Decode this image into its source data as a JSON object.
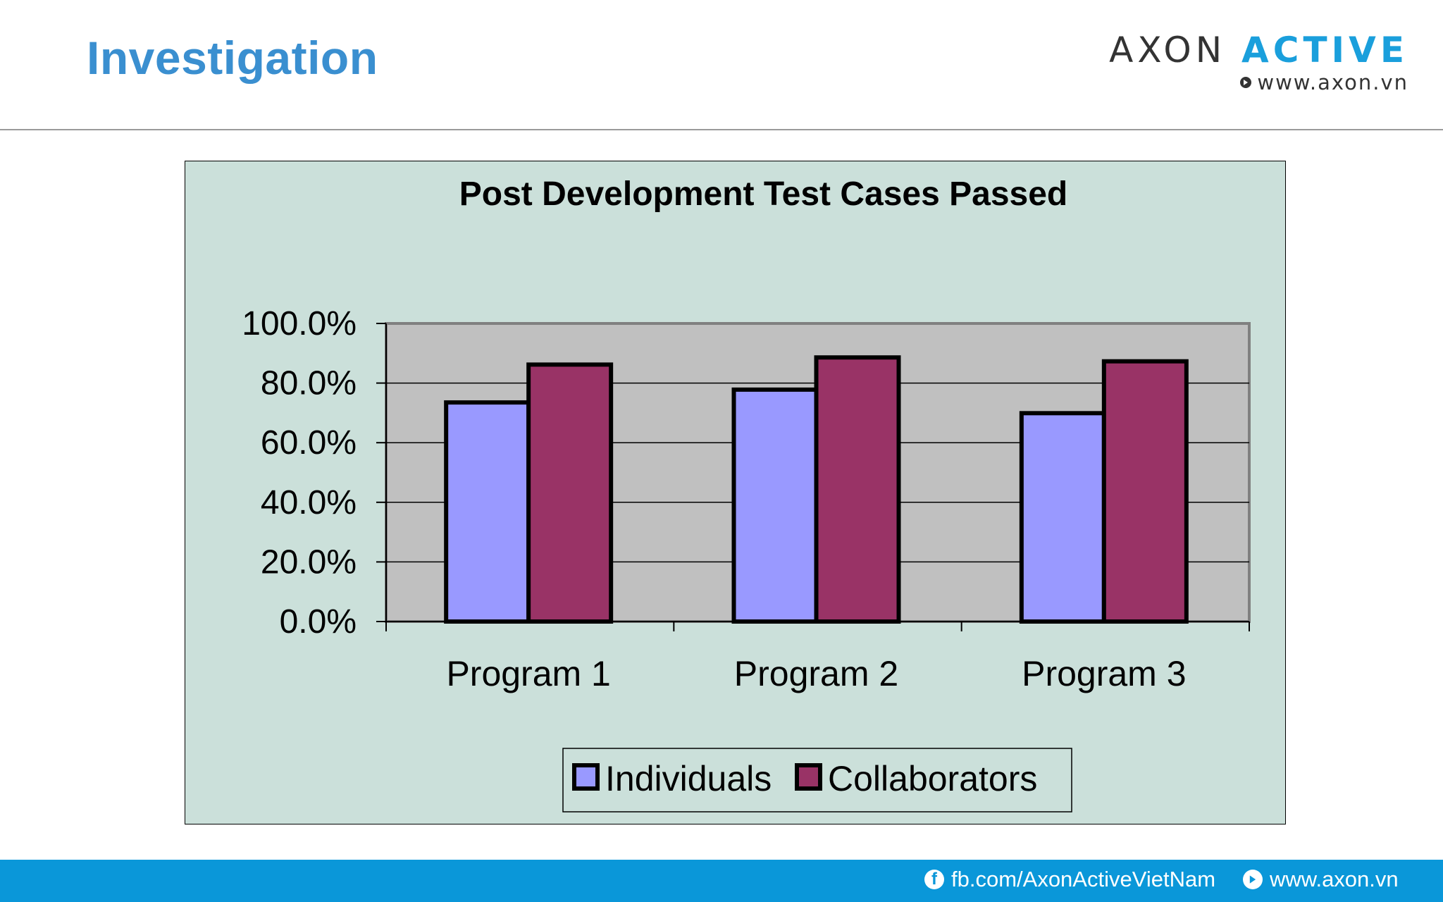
{
  "slide": {
    "title": "Investigation"
  },
  "logo": {
    "brand_axon": "AXON",
    "brand_active": "ACTIVE",
    "website": "www.axon.vn",
    "colors": {
      "axon": "#333333",
      "active": "#1a9fdc"
    }
  },
  "footer": {
    "facebook": "fb.com/AxonActiveVietNam",
    "website": "www.axon.vn",
    "background": "#0a97d9"
  },
  "chart_data": {
    "type": "bar",
    "title": "Post Development Test Cases Passed",
    "categories": [
      "Program 1",
      "Program 2",
      "Program 3"
    ],
    "series": [
      {
        "name": "Individuals",
        "values": [
          73.5,
          77.8,
          69.9
        ],
        "color": "#9999ff"
      },
      {
        "name": "Collaborators",
        "values": [
          86.2,
          88.6,
          87.3
        ],
        "color": "#993366"
      }
    ],
    "ylim": [
      0,
      100
    ],
    "yticks": [
      0,
      20,
      40,
      60,
      80,
      100
    ],
    "ytick_labels": [
      "0.0%",
      "20.0%",
      "40.0%",
      "60.0%",
      "80.0%",
      "100.0%"
    ],
    "xlabel": "",
    "ylabel": "",
    "grid": true,
    "legend_position": "bottom",
    "plot_background": "#c0c0c0",
    "chart_background": "#cbe0da"
  }
}
